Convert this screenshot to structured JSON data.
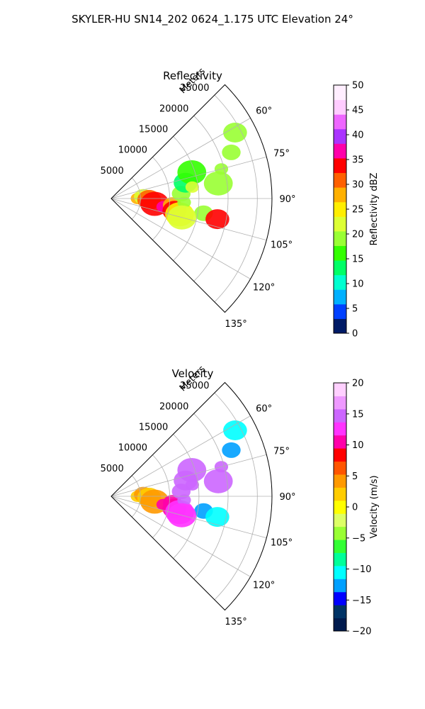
{
  "figure": {
    "title": "SKYLER-HU  SN14_202  0624_1.175 UTC Elevation 24°"
  },
  "chart_data": [
    {
      "type": "heatmap",
      "projection": "polar-sector",
      "title": "Reflectivity",
      "range_label": "Meters",
      "range_ticks": [
        5000,
        10000,
        15000,
        20000,
        25000
      ],
      "range_max": 27500,
      "azimuth_range_deg": [
        45,
        135
      ],
      "azimuth_ticks_deg": [
        60,
        75,
        90,
        105,
        120,
        135
      ],
      "azimuth_tick_labels": [
        "60°",
        "75°",
        "90°",
        "105°",
        "120°",
        "135°"
      ],
      "grid": true,
      "colorbar": {
        "label": "Reflectivity dBZ",
        "range": [
          0,
          50
        ],
        "ticks": [
          0,
          5,
          10,
          15,
          20,
          25,
          30,
          35,
          40,
          45,
          50
        ],
        "colormap": "pyart_NWSRef"
      },
      "cells": [
        {
          "az": 90,
          "r": 4500,
          "v": 27
        },
        {
          "az": 87,
          "r": 5500,
          "v": 22
        },
        {
          "az": 92,
          "r": 6500,
          "v": 30
        },
        {
          "az": 97,
          "r": 7500,
          "v": 33
        },
        {
          "az": 99,
          "r": 9000,
          "v": 37
        },
        {
          "az": 96,
          "r": 10500,
          "v": 28
        },
        {
          "az": 101,
          "r": 11000,
          "v": 34
        },
        {
          "az": 103,
          "r": 12000,
          "v": 24
        },
        {
          "az": 93,
          "r": 12500,
          "v": 18
        },
        {
          "az": 86,
          "r": 12000,
          "v": 20
        },
        {
          "az": 78,
          "r": 13000,
          "v": 14
        },
        {
          "az": 72,
          "r": 14500,
          "v": 16
        },
        {
          "az": 82,
          "r": 14000,
          "v": 22
        },
        {
          "az": 99,
          "r": 16000,
          "v": 19
        },
        {
          "az": 101,
          "r": 18500,
          "v": 33
        },
        {
          "az": 82,
          "r": 18500,
          "v": 19
        },
        {
          "az": 75,
          "r": 19500,
          "v": 20
        },
        {
          "az": 69,
          "r": 22000,
          "v": 19
        },
        {
          "az": 62,
          "r": 24000,
          "v": 20
        },
        {
          "az": 105,
          "r": 12500,
          "v": 21
        }
      ]
    },
    {
      "type": "heatmap",
      "projection": "polar-sector",
      "title": "Velocity",
      "range_label": "Meters",
      "range_ticks": [
        5000,
        10000,
        15000,
        20000,
        25000
      ],
      "range_max": 27500,
      "azimuth_range_deg": [
        45,
        135
      ],
      "azimuth_ticks_deg": [
        60,
        75,
        90,
        105,
        120,
        135
      ],
      "azimuth_tick_labels": [
        "60°",
        "75°",
        "90°",
        "105°",
        "120°",
        "135°"
      ],
      "grid": true,
      "colorbar": {
        "label": "Velocity (m/s)",
        "range": [
          -20,
          20
        ],
        "ticks": [
          -20,
          -15,
          -10,
          -5,
          0,
          5,
          10,
          15,
          20
        ],
        "colormap": "pyart_BuDRd18"
      },
      "cells": [
        {
          "az": 90,
          "r": 4500,
          "v": 3
        },
        {
          "az": 87,
          "r": 5500,
          "v": 4
        },
        {
          "az": 92,
          "r": 6500,
          "v": 2
        },
        {
          "az": 97,
          "r": 7500,
          "v": 5
        },
        {
          "az": 99,
          "r": 9000,
          "v": 10
        },
        {
          "az": 96,
          "r": 10500,
          "v": 11
        },
        {
          "az": 101,
          "r": 11000,
          "v": 10
        },
        {
          "az": 103,
          "r": 12000,
          "v": 12
        },
        {
          "az": 93,
          "r": 12500,
          "v": 14
        },
        {
          "az": 86,
          "r": 12000,
          "v": 15
        },
        {
          "az": 78,
          "r": 13000,
          "v": 15
        },
        {
          "az": 72,
          "r": 14500,
          "v": 14
        },
        {
          "az": 82,
          "r": 14000,
          "v": 15
        },
        {
          "az": 99,
          "r": 16000,
          "v": -13
        },
        {
          "az": 101,
          "r": 18500,
          "v": -10
        },
        {
          "az": 82,
          "r": 18500,
          "v": 15
        },
        {
          "az": 75,
          "r": 19500,
          "v": 14
        },
        {
          "az": 69,
          "r": 22000,
          "v": -12
        },
        {
          "az": 62,
          "r": 24000,
          "v": -11
        },
        {
          "az": 105,
          "r": 12500,
          "v": 12
        }
      ]
    }
  ],
  "colors": {
    "grid": "#b0b0b0",
    "axis": "#000000",
    "reflectivity_scale": [
      "#001a66",
      "#0040ff",
      "#00b0ff",
      "#00ffd0",
      "#00ff66",
      "#33ff00",
      "#99ff33",
      "#ddff33",
      "#ffee00",
      "#ffb000",
      "#ff6000",
      "#ff0000",
      "#ff00aa",
      "#aa33ff",
      "#ee66ff",
      "#ffccff",
      "#ffeeff"
    ],
    "velocity_scale": [
      "#001a4d",
      "#003366",
      "#0000ff",
      "#00a0ff",
      "#00ffff",
      "#00ff99",
      "#33ff33",
      "#99ff33",
      "#ddff66",
      "#ffff00",
      "#ffcc00",
      "#ff9900",
      "#ff5500",
      "#ff0000",
      "#ff00aa",
      "#ff33ff",
      "#cc66ff",
      "#ee99ff",
      "#ffd0ff"
    ]
  }
}
